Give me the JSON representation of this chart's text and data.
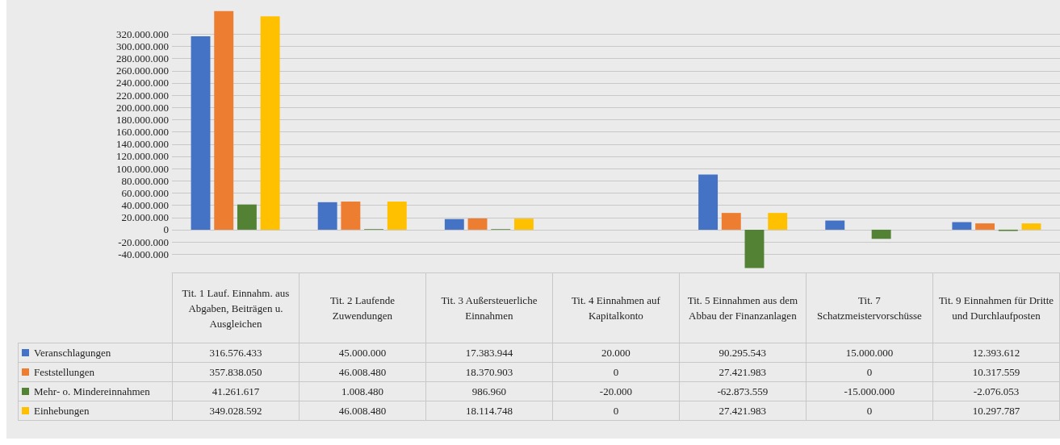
{
  "chart_data": {
    "type": "bar",
    "categories": [
      "Tit. 1 Lauf. Einnahm. aus Abgaben, Beiträgen u. Ausgleichen",
      "Tit. 2 Laufende Zuwendungen",
      "Tit. 3 Außersteuerliche Einnahmen",
      "Tit. 4 Einnahmen auf Kapitalkonto",
      "Tit. 5 Einnahmen aus dem Abbau der Finanzanlagen",
      "Tit. 7 Schatzmeistervorschüsse",
      "Tit. 9 Einnahmen für Dritte und Durchlaufposten"
    ],
    "series": [
      {
        "name": "Veranschlagungen",
        "color": "#4472c4",
        "values": [
          316576433,
          45000000,
          17383944,
          20000,
          90295543,
          15000000,
          12393612
        ],
        "value_labels": [
          "316.576.433",
          "45.000.000",
          "17.383.944",
          "20.000",
          "90.295.543",
          "15.000.000",
          "12.393.612"
        ]
      },
      {
        "name": "Feststellungen",
        "color": "#ed7d31",
        "values": [
          357838050,
          46008480,
          18370903,
          0,
          27421983,
          0,
          10317559
        ],
        "value_labels": [
          "357.838.050",
          "46.008.480",
          "18.370.903",
          "0",
          "27.421.983",
          "0",
          "10.317.559"
        ]
      },
      {
        "name": "Mehr- o. Mindereinnahmen",
        "color": "#548235",
        "values": [
          41261617,
          1008480,
          986960,
          -20000,
          -62873559,
          -15000000,
          -2076053
        ],
        "value_labels": [
          "41.261.617",
          "1.008.480",
          "986.960",
          "-20.000",
          "-62.873.559",
          "-15.000.000",
          "-2.076.053"
        ]
      },
      {
        "name": "Einhebungen",
        "color": "#ffc000",
        "values": [
          349028592,
          46008480,
          18114748,
          0,
          27421983,
          0,
          10297787
        ],
        "value_labels": [
          "349.028.592",
          "46.008.480",
          "18.114.748",
          "0",
          "27.421.983",
          "0",
          "10.297.787"
        ]
      }
    ],
    "ylim": [
      -70000000,
      360000000
    ],
    "yticks": [
      {
        "value": -40000000,
        "label": "-40.000.000"
      },
      {
        "value": -20000000,
        "label": "-20.000.000"
      },
      0,
      {
        "value": 20000000,
        "label": "20.000.000"
      },
      {
        "value": 40000000,
        "label": "40.000.000"
      },
      {
        "value": 60000000,
        "label": "60.000.000"
      },
      {
        "value": 80000000,
        "label": "80.000.000"
      },
      {
        "value": 100000000,
        "label": "100.000.000"
      },
      {
        "value": 120000000,
        "label": "120.000.000"
      },
      {
        "value": 140000000,
        "label": "140.000.000"
      },
      {
        "value": 160000000,
        "label": "160.000.000"
      },
      {
        "value": 180000000,
        "label": "180.000.000"
      },
      {
        "value": 200000000,
        "label": "200.000.000"
      },
      {
        "value": 220000000,
        "label": "220.000.000"
      },
      {
        "value": 240000000,
        "label": "240.000.000"
      },
      {
        "value": 260000000,
        "label": "260.000.000"
      },
      {
        "value": 280000000,
        "label": "280.000.000"
      },
      {
        "value": 300000000,
        "label": "300.000.000"
      },
      {
        "value": 320000000,
        "label": "320.000.000"
      }
    ],
    "grid": "y",
    "legend": "bottom"
  }
}
